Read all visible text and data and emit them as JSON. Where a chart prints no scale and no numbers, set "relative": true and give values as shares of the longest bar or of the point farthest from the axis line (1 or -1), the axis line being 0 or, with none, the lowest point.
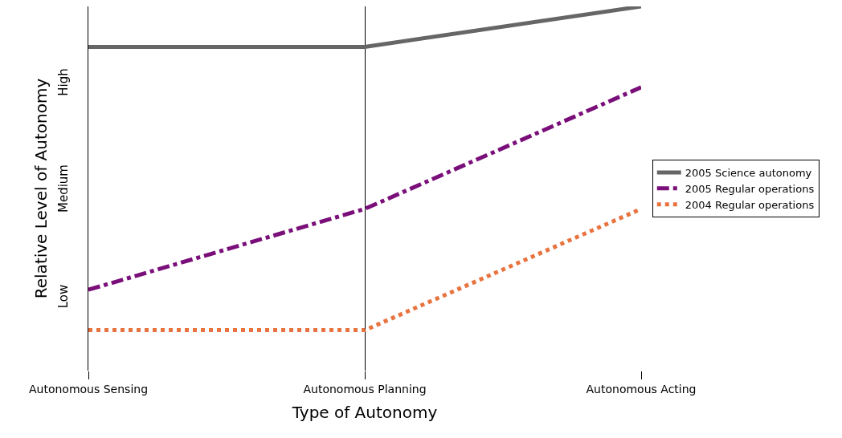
{
  "chart_data": {
    "type": "line",
    "xlabel": "Type of Autonomy",
    "ylabel": "Relative Level of Autonomy",
    "categories": [
      "Autonomous Sensing",
      "Autonomous Planning",
      "Autonomous Acting"
    ],
    "series": [
      {
        "name": "2005 Science autonomy",
        "color": "#666666",
        "values": [
          0.889,
          0.889,
          1
        ],
        "line_style": "solid"
      },
      {
        "name": "2005 Regular operations",
        "color": "#7a0f7a",
        "values": [
          0.222,
          0.444,
          0.778
        ],
        "line_style": "dashed"
      },
      {
        "name": "2004 Regular operations",
        "color": "#e8733e",
        "values": [
          0.111,
          0.111,
          0.444
        ],
        "line_style": "dotted"
      }
    ],
    "relative": true,
    "annotations": [
      "Low",
      "Medium",
      "High"
    ],
    "grid": "x",
    "legend": "right",
    "marker": "none"
  }
}
